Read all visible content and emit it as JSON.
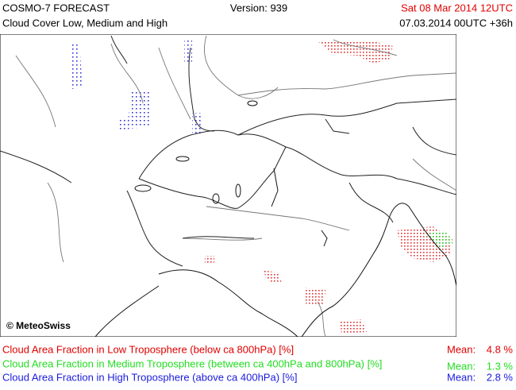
{
  "header": {
    "model": "COSMO-7 FORECAST",
    "product": "Cloud Cover Low, Medium and High",
    "version": "Version: 939",
    "valid_time": "Sat 08 Mar 2014 12UTC",
    "run": "07.03.2014 00UTC +36h",
    "valid_color": "#e00000"
  },
  "map": {
    "copyright": "© MeteoSwiss"
  },
  "legend": [
    {
      "label": "Cloud Area Fraction in Low Troposphere (below ca 800hPa) [%]",
      "mean_label": "Mean:",
      "mean": "4.8 %",
      "color": "#e00000"
    },
    {
      "label": "Cloud Area Fraction in Medium Troposphere (between ca 400hPa and 800hPa) [%]",
      "mean_label": "Mean:",
      "mean": "1.3 %",
      "color": "#22dd22"
    },
    {
      "label": "Cloud Area Fraction in High Troposphere (above ca 400hPa) [%]",
      "mean_label": "Mean:",
      "mean": "2.8 %",
      "color": "#1a1adf"
    }
  ]
}
